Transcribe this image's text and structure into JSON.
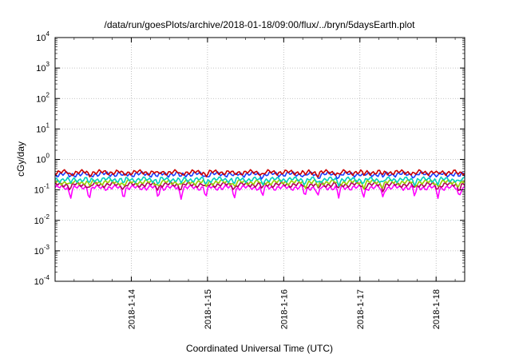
{
  "chart_data": {
    "type": "line",
    "title": "/data/run/goesPlots/archive/2018-01-18/09:00/flux/../bryn/5daysEarth.plot",
    "xlabel": "Coordinated Universal Time (UTC)",
    "ylabel": "cGy/day",
    "yscale": "log",
    "ylim": [
      0.0001,
      10000
    ],
    "y_ticks": [
      {
        "base": "10",
        "exp": "-4"
      },
      {
        "base": "10",
        "exp": "-3"
      },
      {
        "base": "10",
        "exp": "-2"
      },
      {
        "base": "10",
        "exp": "-1"
      },
      {
        "base": "10",
        "exp": "0"
      },
      {
        "base": "10",
        "exp": "1"
      },
      {
        "base": "10",
        "exp": "2"
      },
      {
        "base": "10",
        "exp": "3"
      },
      {
        "base": "10",
        "exp": "4"
      }
    ],
    "xlim": [
      "2018-01-13T00:00",
      "2018-01-18T09:00"
    ],
    "x_ticks": [
      "2018-1-14",
      "2018-1-15",
      "2018-1-16",
      "2018-1-17",
      "2018-1-18"
    ],
    "grid": true,
    "series": [
      {
        "color": "#cc0000",
        "level": 0.38,
        "dip_depth": 0.18
      },
      {
        "color": "#1a3cff",
        "level": 0.33,
        "dip_depth": 0.2
      },
      {
        "color": "#00d0c0",
        "level": 0.22,
        "dip_depth": 0.25
      },
      {
        "color": "#9ad000",
        "level": 0.18,
        "dip_depth": 0.28
      },
      {
        "color": "#b0005a",
        "level": 0.15,
        "dip_depth": 0.3
      },
      {
        "color": "#ff00ff",
        "level": 0.12,
        "dip_depth": 0.55
      }
    ]
  }
}
